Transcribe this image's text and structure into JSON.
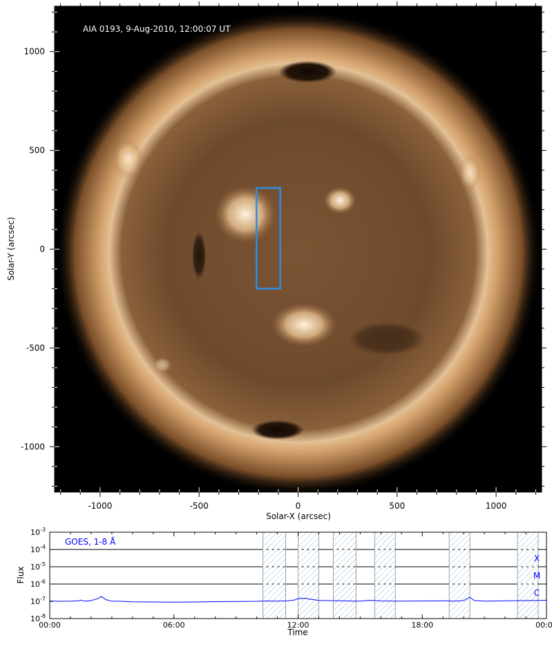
{
  "chart_data": [
    {
      "type": "image",
      "title": "AIA 0193, 9-Aug-2010, 12:00:07 UT",
      "xlabel": "Solar-X (arcsec)",
      "ylabel": "Solar-Y (arcsec)",
      "xlim": [
        -1230,
        1230
      ],
      "ylim": [
        -1230,
        1230
      ],
      "xticks": [
        -1000,
        -500,
        0,
        500,
        1000
      ],
      "yticks": [
        1000,
        500,
        0,
        -500,
        -1000
      ],
      "xtick_labels": [
        "-1000",
        "-500",
        "0",
        "500",
        "1000"
      ],
      "ytick_labels": [
        "1000",
        "500",
        "0",
        "-500",
        "-1000"
      ],
      "box": {
        "x": [
          -210,
          -90
        ],
        "y": [
          -200,
          310
        ],
        "color": "#2b8fe6"
      },
      "colors": {
        "background": "#000000",
        "limb": "#e9c499",
        "disk": "#6e4a2c"
      }
    },
    {
      "type": "line",
      "xlabel": "Time",
      "ylabel": "Flux",
      "annotation": "GOES, 1-8 Å",
      "x_hours_range": [
        0,
        24
      ],
      "xticks": [
        0,
        6,
        12,
        18,
        24
      ],
      "xtick_labels": [
        "00:00",
        "06:00",
        "12:00",
        "18:00",
        "00:00"
      ],
      "yscale": "log",
      "ylim_exp": [
        -8,
        -3
      ],
      "ytick_labels": [
        "-3",
        "-4",
        "-5",
        "-6",
        "-7",
        "-8"
      ],
      "flare_levels": [
        {
          "label": "X",
          "exp": -4
        },
        {
          "label": "M",
          "exp": -5
        },
        {
          "label": "C",
          "exp": -6
        }
      ],
      "shaded_intervals_hours": [
        [
          10.3,
          11.4
        ],
        [
          12.0,
          13.0
        ],
        [
          13.7,
          14.8
        ],
        [
          15.7,
          16.7
        ],
        [
          19.3,
          20.3
        ],
        [
          22.6,
          23.6
        ]
      ],
      "series": [
        {
          "color": "#0000ff",
          "x_hours": [
            0,
            0.5,
            1.0,
            1.4,
            1.5,
            1.7,
            2.0,
            2.3,
            2.5,
            2.7,
            3.0,
            3.5,
            4.0,
            5.0,
            6.0,
            7.0,
            8.0,
            9.0,
            10.0,
            10.5,
            11.0,
            11.5,
            11.8,
            12.0,
            12.3,
            12.6,
            13.0,
            13.5,
            14.0,
            15.0,
            15.5,
            16.0,
            17.0,
            18.0,
            19.0,
            19.5,
            20.0,
            20.3,
            20.5,
            21.0,
            22.0,
            23.0,
            23.5,
            24.0
          ],
          "flux_exp": [
            -6.98,
            -7.0,
            -6.99,
            -6.97,
            -6.93,
            -6.99,
            -6.96,
            -6.85,
            -6.72,
            -6.9,
            -6.99,
            -7.0,
            -7.03,
            -7.04,
            -7.05,
            -7.04,
            -7.02,
            -7.01,
            -7.0,
            -6.98,
            -6.99,
            -6.97,
            -6.93,
            -6.85,
            -6.82,
            -6.88,
            -6.95,
            -6.96,
            -6.97,
            -6.99,
            -6.94,
            -6.98,
            -6.99,
            -6.98,
            -6.97,
            -6.99,
            -6.96,
            -6.75,
            -6.95,
            -6.99,
            -6.97,
            -6.96,
            -6.95,
            -6.94
          ]
        }
      ]
    }
  ]
}
